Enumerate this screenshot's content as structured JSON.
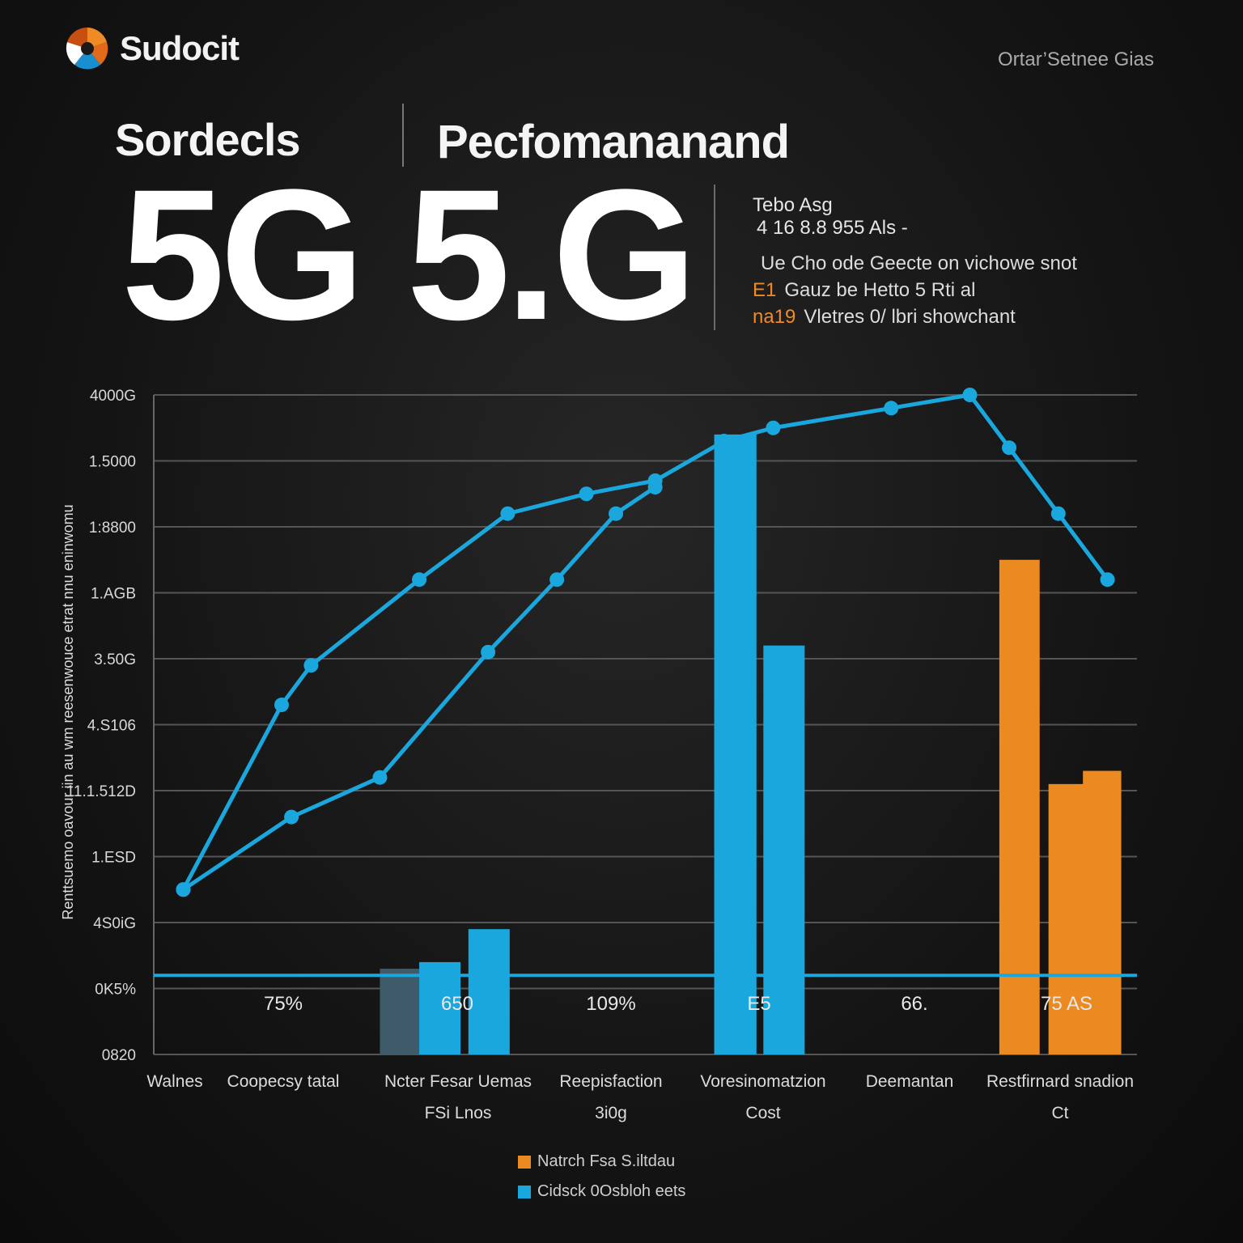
{
  "header": {
    "logo_text": "Sudocit",
    "top_right": "Ortar’Setnee Gias",
    "brand_title": "Sordecls",
    "perf_title": "Pecfomananand",
    "big_title": "5G 5.G"
  },
  "info": {
    "title": "Tebo Asg",
    "subtitle": "4 16 8.8 955 Als -",
    "lines": [
      {
        "prefix": "",
        "text": "Ue Cho ode Geecte on vichowe snot"
      },
      {
        "prefix": "E1",
        "text": "Gauz be Hetto 5 Rti al"
      },
      {
        "prefix": "na19",
        "text": "Vletres 0/ lbri showchant"
      }
    ]
  },
  "colors": {
    "blue": "#1aa7dd",
    "orange": "#ec8a22",
    "slate": "#3f5a68",
    "grid": "#555555"
  },
  "chart_data": {
    "type": "bar",
    "y_tick_labels": [
      "4000G",
      "1.5000",
      "1:8800",
      "1.AGB",
      "3.50G",
      "4.S106",
      "11.1.512D",
      "1.ESD",
      "4S0iG",
      "0K5%",
      "0820"
    ],
    "y_axis_label": "Renttsuemo oavour iin au wm reesenwouce etrat nnu eninwomu",
    "categories": [
      "Walnes",
      "Coopecsy tatal",
      "Ncter Fesar Uemas",
      "Reepisfaction",
      "Voresinomatzion",
      "Deemantan",
      "Restfirnard snadion"
    ],
    "sub_labels": [
      "",
      "",
      "FSi Lnos",
      "3i0g",
      "Cost",
      "",
      "Ct"
    ],
    "bar_value_labels": [
      "75%",
      "650",
      "109%",
      "E5",
      "66.",
      "75 AS"
    ],
    "bars": [
      {
        "color": "slate",
        "value": 0.13
      },
      {
        "color": "blue",
        "value": 0.14
      },
      {
        "color": "blue",
        "value": 0.19
      },
      {
        "color": "blue",
        "value": 0.94
      },
      {
        "color": "blue",
        "value": 0.62
      },
      {
        "color": "orange",
        "value": 0.75
      },
      {
        "color": "orange",
        "value": 0.41
      },
      {
        "color": "orange",
        "value": 0.43
      }
    ],
    "series": [
      {
        "values": [
          [
            0.03,
            0.25
          ],
          [
            0.13,
            0.53
          ],
          [
            0.16,
            0.59
          ],
          [
            0.27,
            0.72
          ],
          [
            0.36,
            0.82
          ],
          [
            0.44,
            0.85
          ],
          [
            0.51,
            0.87
          ],
          [
            0.58,
            0.93
          ],
          [
            0.63,
            0.95
          ],
          [
            0.75,
            0.98
          ],
          [
            0.83,
            1.0
          ],
          [
            0.87,
            0.92
          ],
          [
            0.92,
            0.82
          ],
          [
            0.97,
            0.72
          ]
        ]
      },
      {
        "values": [
          [
            0.03,
            0.25
          ],
          [
            0.14,
            0.36
          ],
          [
            0.23,
            0.42
          ],
          [
            0.34,
            0.61
          ],
          [
            0.41,
            0.72
          ],
          [
            0.47,
            0.82
          ],
          [
            0.51,
            0.86
          ]
        ]
      }
    ],
    "legend": [
      {
        "label": "Natrch Fsa S.iltdau",
        "color": "orange"
      },
      {
        "label": "Cidsck 0Osbloh eets",
        "color": "blue"
      }
    ],
    "baseline_label_value": 0.12
  }
}
